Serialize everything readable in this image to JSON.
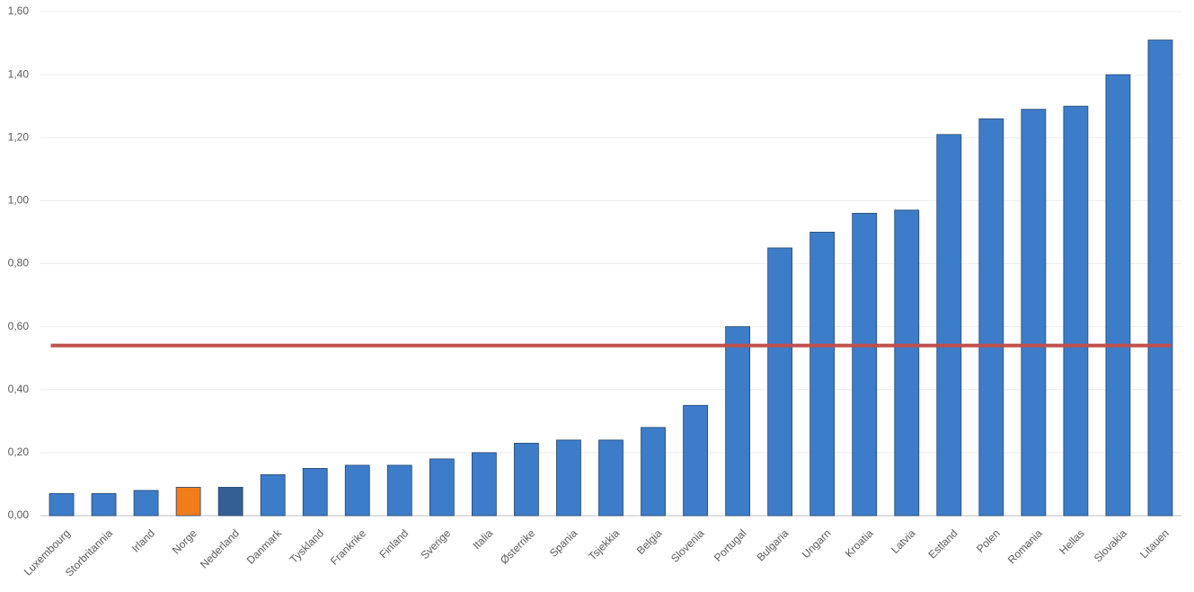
{
  "chart_data": {
    "type": "bar",
    "categories": [
      "Luxembourg",
      "Storbritannia",
      "Irland",
      "Norge",
      "Nederland",
      "Danmark",
      "Tyskland",
      "Frankrike",
      "Finland",
      "Sverige",
      "Italia",
      "Østerrike",
      "Spania",
      "Tsjekkia",
      "Belgia",
      "Slovenia",
      "Portugal",
      "Bulgaria",
      "Ungarn",
      "Kroatia",
      "Latvia",
      "Estland",
      "Polen",
      "Romania",
      "Hellas",
      "Slovakia",
      "Litauen"
    ],
    "values": [
      0.07,
      0.07,
      0.08,
      0.09,
      0.09,
      0.13,
      0.15,
      0.16,
      0.16,
      0.18,
      0.2,
      0.23,
      0.24,
      0.24,
      0.28,
      0.35,
      0.6,
      0.85,
      0.9,
      0.96,
      0.97,
      1.21,
      1.26,
      1.29,
      1.3,
      1.4,
      1.51
    ],
    "colors": [
      "#3d7cc9",
      "#3d7cc9",
      "#3d7cc9",
      "#f07c1c",
      "#345f94",
      "#3d7cc9",
      "#3d7cc9",
      "#3d7cc9",
      "#3d7cc9",
      "#3d7cc9",
      "#3d7cc9",
      "#3d7cc9",
      "#3d7cc9",
      "#3d7cc9",
      "#3d7cc9",
      "#3d7cc9",
      "#3d7cc9",
      "#3d7cc9",
      "#3d7cc9",
      "#3d7cc9",
      "#3d7cc9",
      "#3d7cc9",
      "#3d7cc9",
      "#3d7cc9",
      "#3d7cc9",
      "#3d7cc9",
      "#3d7cc9"
    ],
    "reference_line": {
      "value": 0.54,
      "color": "#c0504d"
    },
    "ylim": [
      0,
      1.6
    ],
    "yticks": [
      {
        "value": 0,
        "label": "0,00"
      },
      {
        "value": 0.2,
        "label": "0,20"
      },
      {
        "value": 0.4,
        "label": "0,40"
      },
      {
        "value": 0.6,
        "label": "0,60"
      },
      {
        "value": 0.8,
        "label": "0,80"
      },
      {
        "value": 1.0,
        "label": "1,00"
      },
      {
        "value": 1.2,
        "label": "1,20"
      },
      {
        "value": 1.4,
        "label": "1,40"
      },
      {
        "value": 1.6,
        "label": "1,60"
      }
    ],
    "grid": true
  }
}
